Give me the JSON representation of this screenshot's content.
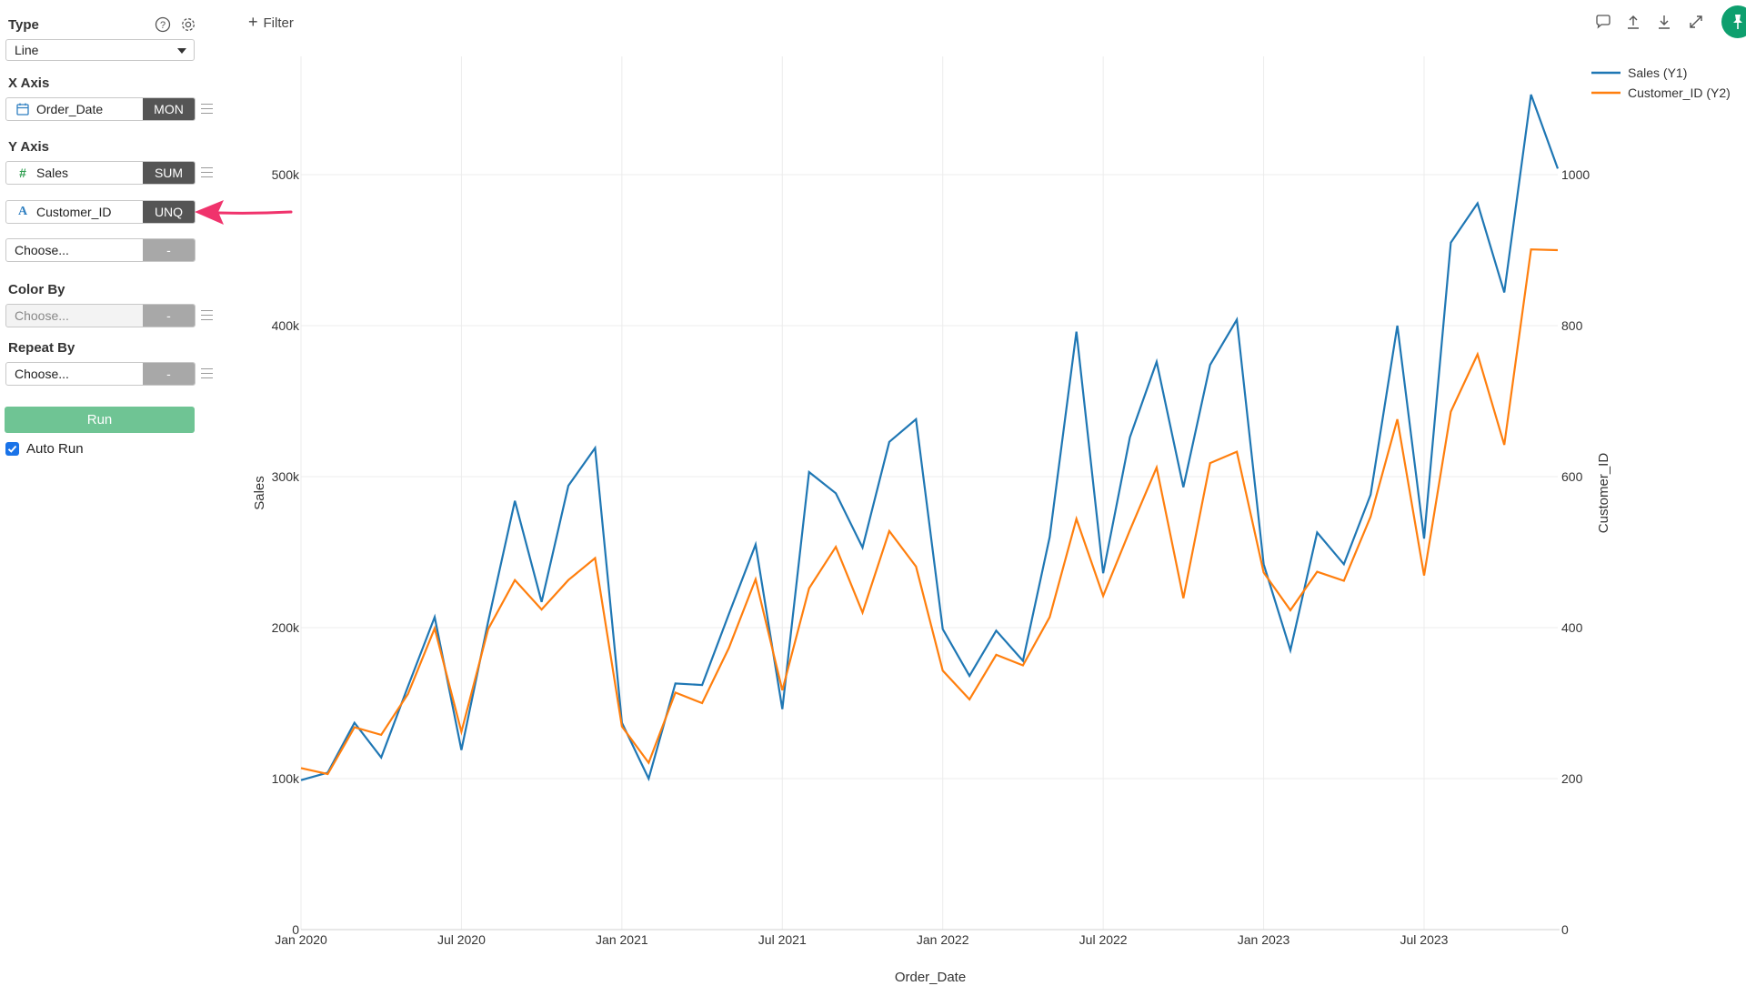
{
  "sidebar": {
    "type_label": "Type",
    "type_value": "Line",
    "x_axis_label": "X Axis",
    "x_field": {
      "name": "Order_Date",
      "agg": "MON",
      "icon": "calendar-icon"
    },
    "y_axis_label": "Y Axis",
    "y_fields": [
      {
        "name": "Sales",
        "agg": "SUM",
        "icon": "hash-icon"
      },
      {
        "name": "Customer_ID",
        "agg": "UNQ",
        "icon": "text-a-icon"
      }
    ],
    "y_choose": {
      "name": "Choose...",
      "agg": "-"
    },
    "color_by_label": "Color By",
    "color_by": {
      "name": "Choose...",
      "agg": "-"
    },
    "repeat_by_label": "Repeat By",
    "repeat_by": {
      "name": "Choose...",
      "agg": "-"
    },
    "run_label": "Run",
    "auto_run_label": "Auto Run",
    "auto_run_checked": true
  },
  "toolbar": {
    "filter_label": "Filter",
    "icons": [
      "comment-icon",
      "upload-icon",
      "download-icon",
      "expand-icon",
      "pin-icon"
    ]
  },
  "colors": {
    "accent_green": "#0e9f6e",
    "run_button": "#6fc494",
    "sales_line": "#1f77b4",
    "customer_line": "#ff7f0e",
    "annotation_arrow": "#f0336c"
  },
  "chart_data": {
    "type": "line",
    "title": "",
    "xlabel": "Order_Date",
    "ylabel": "Sales",
    "y2label": "Customer_ID",
    "x_tick_labels": [
      "Jan 2020",
      "Jul 2020",
      "Jan 2021",
      "Jul 2021",
      "Jan 2022",
      "Jul 2022",
      "Jan 2023",
      "Jul 2023"
    ],
    "y_tick_labels": [
      "0",
      "100k",
      "200k",
      "300k",
      "400k",
      "500k"
    ],
    "y2_tick_labels": [
      "0",
      "200",
      "400",
      "600",
      "800",
      "1000"
    ],
    "ylim": [
      0,
      500000
    ],
    "y2lim": [
      0,
      1000
    ],
    "grid": true,
    "legend_position": "top-right",
    "x": [
      "2020-01",
      "2020-02",
      "2020-03",
      "2020-04",
      "2020-05",
      "2020-06",
      "2020-07",
      "2020-08",
      "2020-09",
      "2020-10",
      "2020-11",
      "2020-12",
      "2021-01",
      "2021-02",
      "2021-03",
      "2021-04",
      "2021-05",
      "2021-06",
      "2021-07",
      "2021-08",
      "2021-09",
      "2021-10",
      "2021-11",
      "2021-12",
      "2022-01",
      "2022-02",
      "2022-03",
      "2022-04",
      "2022-05",
      "2022-06",
      "2022-07",
      "2022-08",
      "2022-09",
      "2022-10",
      "2022-11",
      "2022-12",
      "2023-01",
      "2023-02",
      "2023-03",
      "2023-04",
      "2023-05",
      "2023-06",
      "2023-07",
      "2023-08",
      "2023-09",
      "2023-10",
      "2023-11",
      "2023-12"
    ],
    "series": [
      {
        "name": "Sales (Y1)",
        "axis": "y1",
        "values": [
          99000,
          104000,
          137000,
          114000,
          161000,
          207000,
          119000,
          204000,
          284000,
          217000,
          294000,
          319000,
          137000,
          100000,
          163000,
          162000,
          209000,
          255000,
          146000,
          303000,
          289000,
          253000,
          323000,
          338000,
          199000,
          168000,
          198000,
          178000,
          260000,
          396000,
          236000,
          326000,
          376000,
          293000,
          374000,
          404000,
          242000,
          185000,
          263000,
          242000,
          288000,
          400000,
          259000,
          455000,
          481000,
          422000,
          553000,
          504000
        ]
      },
      {
        "name": "Customer_ID (Y2)",
        "axis": "y2",
        "values": [
          214,
          206,
          268,
          258,
          312,
          399,
          262,
          398,
          463,
          424,
          463,
          492,
          269,
          221,
          314,
          300,
          373,
          464,
          317,
          452,
          507,
          420,
          528,
          481,
          343,
          305,
          364,
          350,
          414,
          544,
          442,
          529,
          612,
          439,
          618,
          633,
          473,
          423,
          474,
          462,
          547,
          676,
          469,
          686,
          762,
          642,
          901,
          900
        ]
      }
    ]
  }
}
